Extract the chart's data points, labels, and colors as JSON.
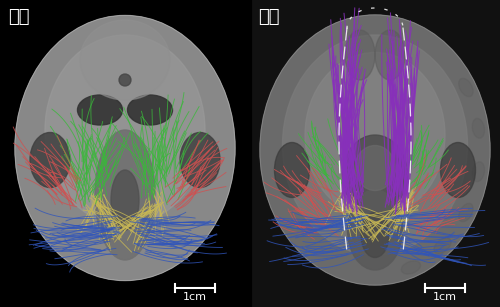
{
  "left_label": "サル",
  "right_label": "ヒト",
  "scale_bar_text": "1cm",
  "background_color": "#000000",
  "label_color": "#ffffff",
  "figsize": [
    5.0,
    3.07
  ],
  "dpi": 100,
  "fiber_colors": {
    "green": "#3ab83a",
    "red": "#d05050",
    "blue": "#3055bb",
    "yellow": "#c8b855",
    "purple": "#8830bb",
    "pink": "#cc7080"
  }
}
